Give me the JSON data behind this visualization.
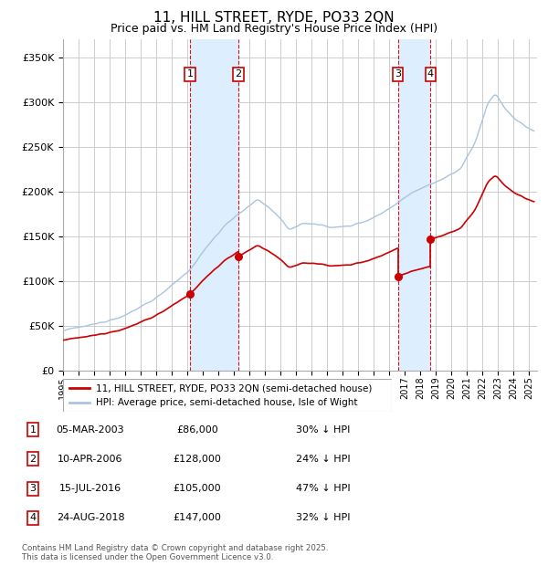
{
  "title": "11, HILL STREET, RYDE, PO33 2QN",
  "subtitle": "Price paid vs. HM Land Registry's House Price Index (HPI)",
  "title_fontsize": 11,
  "subtitle_fontsize": 9,
  "ylim": [
    0,
    370000
  ],
  "yticks": [
    0,
    50000,
    100000,
    150000,
    200000,
    250000,
    300000,
    350000
  ],
  "ytick_labels": [
    "£0",
    "£50K",
    "£100K",
    "£150K",
    "£200K",
    "£250K",
    "£300K",
    "£350K"
  ],
  "background_color": "#ffffff",
  "plot_bg_color": "#ffffff",
  "grid_color": "#cccccc",
  "hpi_color": "#aac4df",
  "price_color": "#cc0000",
  "dashed_line_color": "#cc0000",
  "shade_color": "#ddeeff",
  "transactions": [
    {
      "id": 1,
      "date_label": "05-MAR-2003",
      "date_x": 2003.18,
      "price": 86000,
      "hpi_pct": "30% ↓ HPI"
    },
    {
      "id": 2,
      "date_label": "10-APR-2006",
      "date_x": 2006.27,
      "price": 128000,
      "hpi_pct": "24% ↓ HPI"
    },
    {
      "id": 3,
      "date_label": "15-JUL-2016",
      "date_x": 2016.54,
      "price": 105000,
      "hpi_pct": "47% ↓ HPI"
    },
    {
      "id": 4,
      "date_label": "24-AUG-2018",
      "date_x": 2018.65,
      "price": 147000,
      "hpi_pct": "32% ↓ HPI"
    }
  ],
  "legend_entries": [
    "11, HILL STREET, RYDE, PO33 2QN (semi-detached house)",
    "HPI: Average price, semi-detached house, Isle of Wight"
  ],
  "footnote": "Contains HM Land Registry data © Crown copyright and database right 2025.\nThis data is licensed under the Open Government Licence v3.0.",
  "xmin": 1995.0,
  "xmax": 2025.5
}
